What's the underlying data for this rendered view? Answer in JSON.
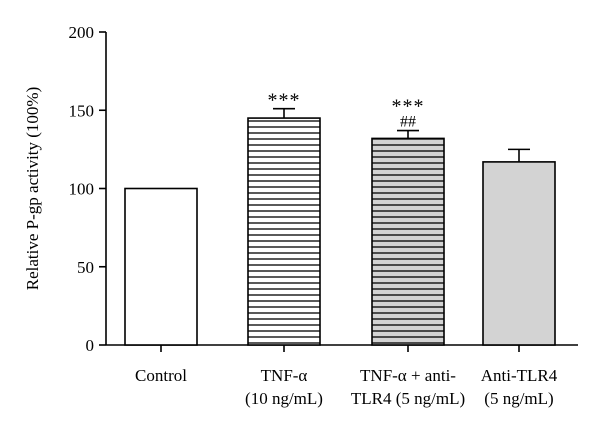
{
  "chart_data": {
    "type": "bar",
    "title": "",
    "xlabel": "",
    "ylabel": "Relative P-gp activity (100%)",
    "ylim": [
      0,
      200
    ],
    "yticks": [
      0,
      50,
      100,
      150,
      200
    ],
    "grid": false,
    "categories": [
      [
        "Control"
      ],
      [
        "TNF-α",
        "(10 ng/mL)"
      ],
      [
        "TNF-α + anti-",
        "TLR4 (5 ng/mL)"
      ],
      [
        "Anti-TLR4",
        "(5 ng/mL)"
      ]
    ],
    "values": [
      100,
      145,
      132,
      117
    ],
    "errors": [
      0,
      6,
      5,
      8
    ],
    "fills": [
      "white",
      "hstripe-white",
      "hstripe-gray",
      "solid-gray"
    ],
    "significance": [
      [],
      [
        "***"
      ],
      [
        "***",
        "##"
      ],
      []
    ],
    "colors": {
      "edge": "#000000",
      "stripe": "#000000",
      "gray_fill": "#d3d3d3",
      "white_fill": "#ffffff"
    }
  }
}
